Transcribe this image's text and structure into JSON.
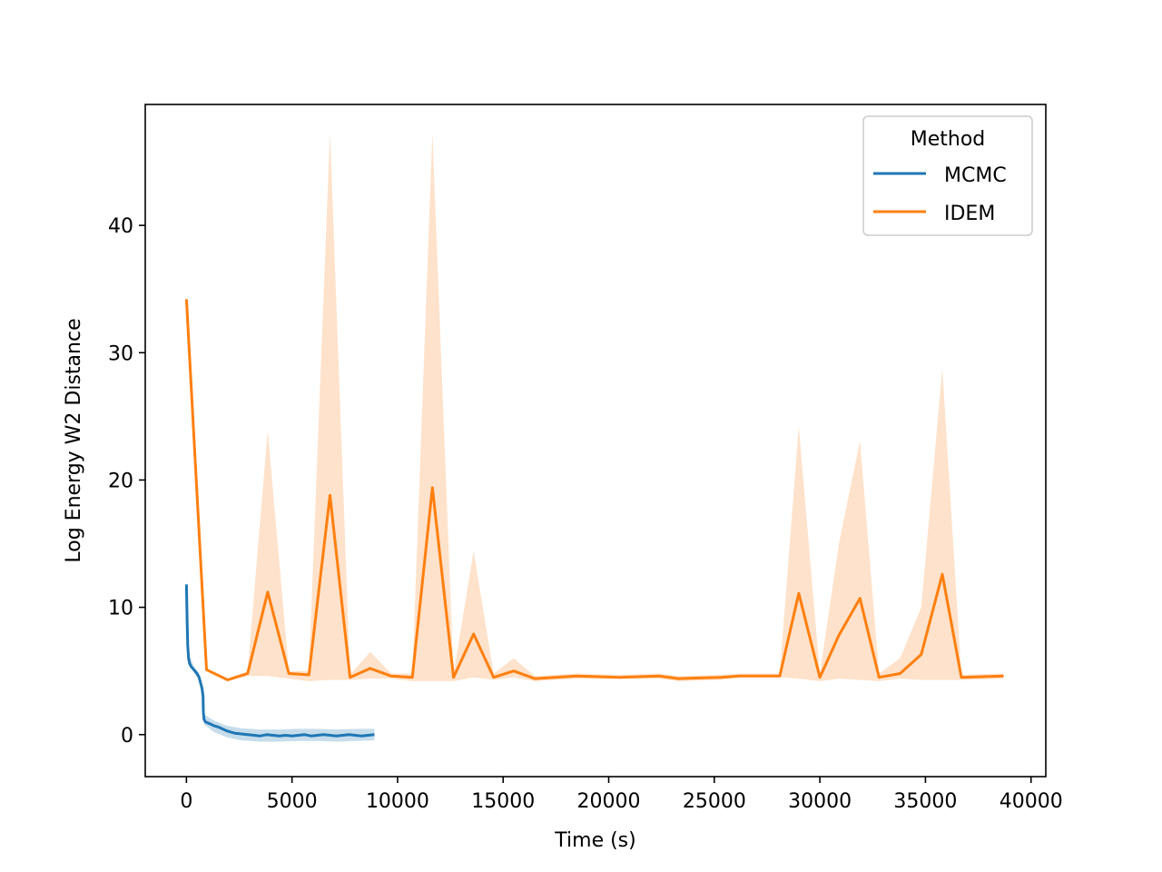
{
  "chart_data": {
    "type": "line",
    "title": "",
    "xlabel": "Time (s)",
    "ylabel": "Log Energy W2 Distance",
    "xlim": [
      -1950,
      40700
    ],
    "ylim": [
      -3.3,
      49.5
    ],
    "xticks": [
      0,
      5000,
      10000,
      15000,
      20000,
      25000,
      30000,
      35000,
      40000
    ],
    "yticks": [
      0,
      10,
      20,
      30,
      40
    ],
    "grid": false,
    "legend": {
      "title": "Method",
      "position": "top-right"
    },
    "series": [
      {
        "name": "MCMC",
        "color": "#1f77b4",
        "band_color": "#1f77b4",
        "points": [
          [
            0,
            11.8
          ],
          [
            30,
            9.0
          ],
          [
            60,
            7.0
          ],
          [
            100,
            6.0
          ],
          [
            150,
            5.6
          ],
          [
            220,
            5.35
          ],
          [
            350,
            5.1
          ],
          [
            500,
            4.8
          ],
          [
            600,
            4.5
          ],
          [
            680,
            4.0
          ],
          [
            740,
            3.6
          ],
          [
            790,
            3.0
          ],
          [
            800,
            1.8
          ],
          [
            830,
            1.2
          ],
          [
            900,
            1.0
          ],
          [
            1100,
            0.85
          ],
          [
            1300,
            0.7
          ],
          [
            1500,
            0.6
          ],
          [
            1700,
            0.45
          ],
          [
            1900,
            0.3
          ],
          [
            2100,
            0.2
          ],
          [
            2300,
            0.1
          ],
          [
            2600,
            0.05
          ],
          [
            2900,
            0.0
          ],
          [
            3200,
            -0.05
          ],
          [
            3500,
            -0.1
          ],
          [
            3800,
            0.0
          ],
          [
            4100,
            -0.05
          ],
          [
            4400,
            -0.1
          ],
          [
            4700,
            -0.05
          ],
          [
            5000,
            -0.1
          ],
          [
            5300,
            -0.05
          ],
          [
            5600,
            0.0
          ],
          [
            5900,
            -0.1
          ],
          [
            6200,
            -0.05
          ],
          [
            6500,
            0.0
          ],
          [
            6800,
            -0.05
          ],
          [
            7100,
            -0.1
          ],
          [
            7400,
            -0.05
          ],
          [
            7700,
            0.0
          ],
          [
            8000,
            -0.05
          ],
          [
            8300,
            -0.1
          ],
          [
            8600,
            -0.05
          ],
          [
            8900,
            0.0
          ]
        ],
        "band": [
          [
            0,
            11.4,
            12.4
          ],
          [
            100,
            5.7,
            6.4
          ],
          [
            350,
            4.9,
            5.4
          ],
          [
            600,
            4.3,
            4.8
          ],
          [
            790,
            2.6,
            3.4
          ],
          [
            830,
            0.8,
            1.6
          ],
          [
            1300,
            0.2,
            1.1
          ],
          [
            1900,
            -0.2,
            0.7
          ],
          [
            2600,
            -0.45,
            0.5
          ],
          [
            3500,
            -0.55,
            0.4
          ],
          [
            4400,
            -0.55,
            0.4
          ],
          [
            5300,
            -0.5,
            0.45
          ],
          [
            6200,
            -0.5,
            0.45
          ],
          [
            7100,
            -0.55,
            0.4
          ],
          [
            8000,
            -0.5,
            0.45
          ],
          [
            8900,
            -0.45,
            0.45
          ]
        ]
      },
      {
        "name": "IDEM",
        "color": "#ff7f0e",
        "band_color": "#ffdfc5",
        "points": [
          [
            0,
            34.2
          ],
          [
            950,
            5.1
          ],
          [
            1950,
            4.3
          ],
          [
            2900,
            4.8
          ],
          [
            3850,
            11.2
          ],
          [
            4850,
            4.8
          ],
          [
            5800,
            4.7
          ],
          [
            6800,
            18.8
          ],
          [
            7750,
            4.5
          ],
          [
            8700,
            5.2
          ],
          [
            9700,
            4.6
          ],
          [
            10700,
            4.5
          ],
          [
            11650,
            19.4
          ],
          [
            12650,
            4.5
          ],
          [
            13600,
            7.9
          ],
          [
            14550,
            4.5
          ],
          [
            15500,
            5.0
          ],
          [
            16500,
            4.4
          ],
          [
            18500,
            4.6
          ],
          [
            20500,
            4.5
          ],
          [
            22400,
            4.6
          ],
          [
            23300,
            4.4
          ],
          [
            25300,
            4.5
          ],
          [
            26200,
            4.6
          ],
          [
            28100,
            4.6
          ],
          [
            29000,
            11.1
          ],
          [
            30000,
            4.5
          ],
          [
            30900,
            7.8
          ],
          [
            31900,
            10.7
          ],
          [
            32800,
            4.5
          ],
          [
            33800,
            4.8
          ],
          [
            34800,
            6.3
          ],
          [
            35800,
            12.6
          ],
          [
            36700,
            4.5
          ],
          [
            38700,
            4.6
          ]
        ],
        "band": [
          [
            0,
            34.2,
            34.2
          ],
          [
            950,
            5.0,
            5.2
          ],
          [
            1950,
            4.2,
            4.4
          ],
          [
            2900,
            4.6,
            5.0
          ],
          [
            3850,
            4.6,
            23.9
          ],
          [
            4850,
            4.4,
            5.0
          ],
          [
            5800,
            4.2,
            5.0
          ],
          [
            6800,
            4.3,
            47.4
          ],
          [
            7750,
            4.3,
            4.7
          ],
          [
            8700,
            4.4,
            6.5
          ],
          [
            9700,
            4.4,
            4.8
          ],
          [
            10700,
            4.2,
            4.8
          ],
          [
            11650,
            4.2,
            47.3
          ],
          [
            12650,
            4.2,
            4.8
          ],
          [
            13600,
            4.5,
            14.4
          ],
          [
            14550,
            4.3,
            4.8
          ],
          [
            15500,
            4.5,
            6.0
          ],
          [
            16500,
            4.2,
            4.6
          ],
          [
            18500,
            4.4,
            4.8
          ],
          [
            20500,
            4.4,
            4.7
          ],
          [
            22400,
            4.4,
            4.8
          ],
          [
            23300,
            4.2,
            4.6
          ],
          [
            25300,
            4.3,
            4.7
          ],
          [
            26200,
            4.5,
            4.8
          ],
          [
            28100,
            4.5,
            4.8
          ],
          [
            29000,
            4.4,
            24.2
          ],
          [
            30000,
            4.2,
            4.8
          ],
          [
            30900,
            4.4,
            15.0
          ],
          [
            31900,
            4.3,
            23.1
          ],
          [
            32800,
            4.2,
            4.8
          ],
          [
            33800,
            4.4,
            6.0
          ],
          [
            34800,
            4.3,
            10.0
          ],
          [
            35800,
            4.3,
            28.8
          ],
          [
            36700,
            4.3,
            4.7
          ],
          [
            38700,
            4.4,
            4.8
          ]
        ]
      }
    ]
  }
}
